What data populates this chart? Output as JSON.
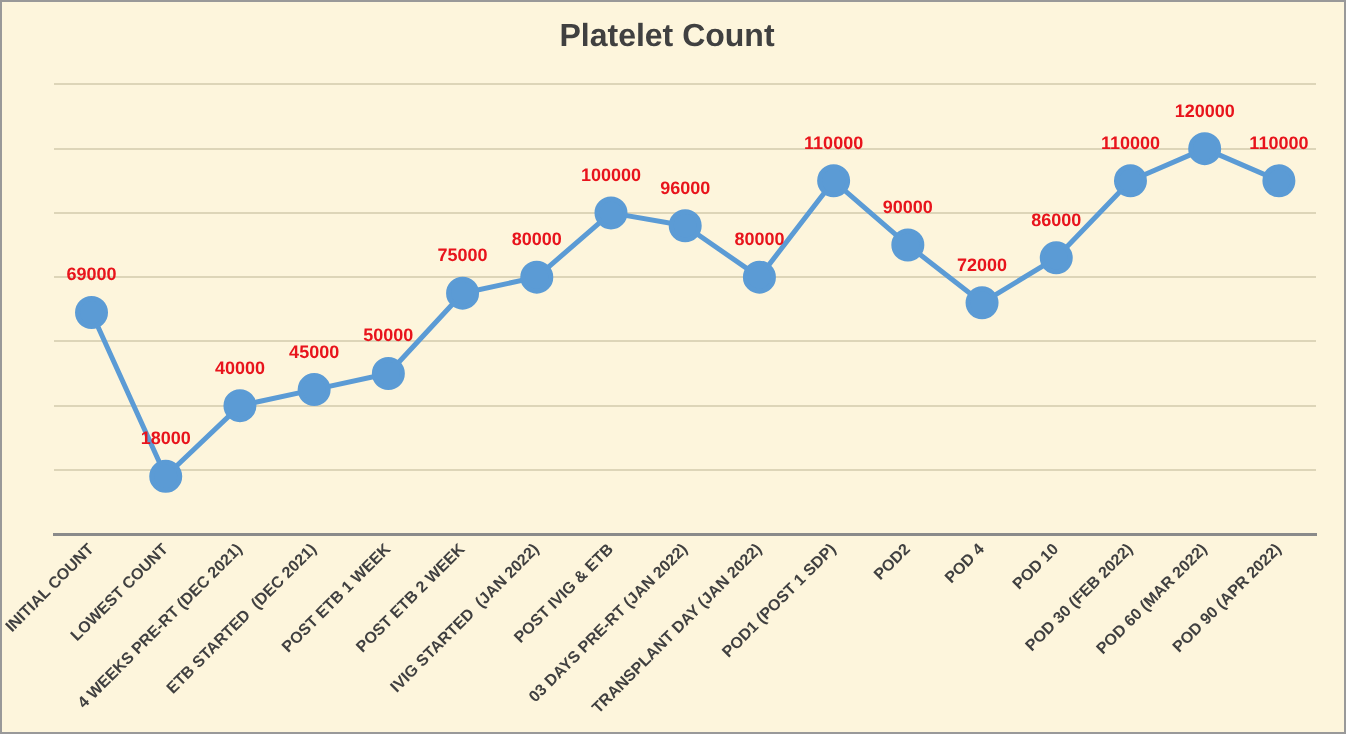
{
  "chart_data": {
    "type": "line",
    "title": "Platelet Count",
    "categories": [
      "INITIAL COUNT",
      "LOWEST COUNT",
      "4 WEEKS PRE-RT (DEC 2021)",
      "ETB STARTED  (DEC 2021)",
      "POST ETB 1 WEEK",
      "POST ETB 2 WEEK",
      "IVIG STARTED  (JAN 2022)",
      "POST IVIG & ETB",
      "03 DAYS PRE-RT (JAN 2022)",
      "TRANSPLANT DAY (JAN 2022)",
      "POD1 (POST 1 SDP)",
      "POD2",
      "POD 4",
      "POD 10",
      "POD 30 (FEB 2022)",
      "POD 60 (MAR 2022)",
      "POD 90 (APR 2022)"
    ],
    "series": [
      {
        "color": "#5b9bd5",
        "values": [
          69000,
          18000,
          40000,
          45000,
          50000,
          75000,
          80000,
          100000,
          96000,
          80000,
          110000,
          90000,
          72000,
          86000,
          110000,
          120000,
          110000
        ]
      }
    ],
    "ylim": [
      0,
      140000
    ],
    "yticks": [
      {
        "value": 20000,
        "label": null
      },
      {
        "value": 40000,
        "label": null
      },
      {
        "value": 60000,
        "label": null
      },
      {
        "value": 80000,
        "label": null
      },
      {
        "value": 100000,
        "label": null
      },
      {
        "value": 120000,
        "label": null
      },
      {
        "value": 140000,
        "label": null
      }
    ],
    "tick_labels": "x",
    "grid": "y",
    "legend": false,
    "marker": "circle",
    "line_style": "solid",
    "data_labels": true
  }
}
